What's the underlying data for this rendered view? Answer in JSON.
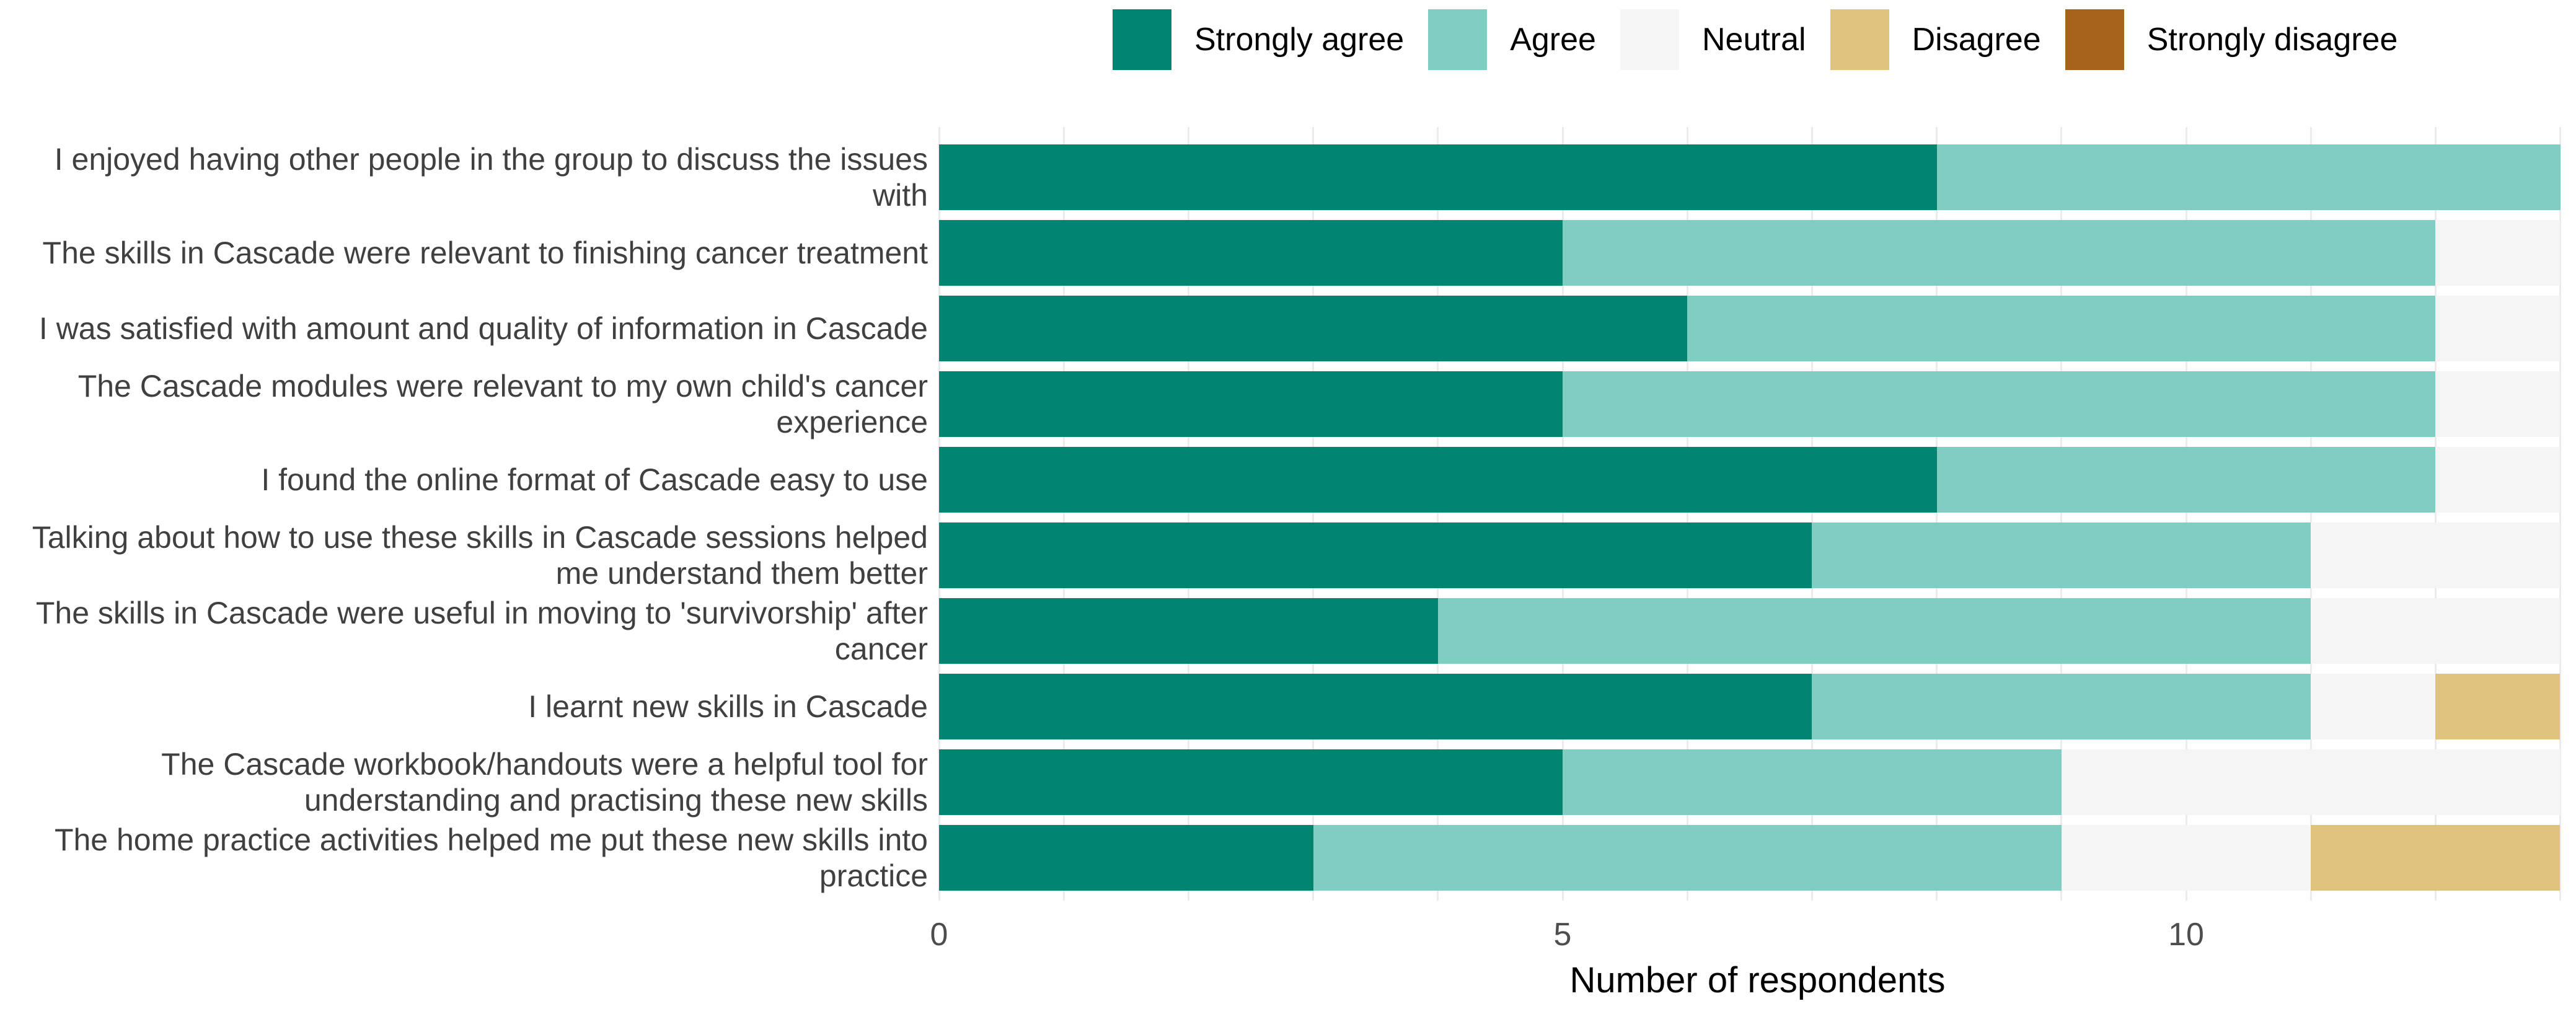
{
  "legend": {
    "items": [
      {
        "label": "Strongly agree",
        "color": "#018571"
      },
      {
        "label": "Agree",
        "color": "#80cdc1"
      },
      {
        "label": "Neutral",
        "color": "#f5f5f5"
      },
      {
        "label": "Disagree",
        "color": "#dfc27d"
      },
      {
        "label": "Strongly disagree",
        "color": "#a6611a"
      }
    ]
  },
  "chart_data": {
    "type": "bar",
    "stacked": true,
    "orientation": "horizontal",
    "title": "",
    "xlabel": "Number of respondents",
    "ylabel": "",
    "xlim": [
      0,
      13.1
    ],
    "gridline_step": 1,
    "gridline_max": 13,
    "legend_position": "top",
    "categories": [
      "I enjoyed having other people in the group to discuss the issues with",
      "The skills in Cascade were relevant to finishing cancer treatment",
      "I was satisfied with amount and quality of information in Cascade",
      "The Cascade modules were relevant to my own child's cancer experience",
      "I found the online format of Cascade easy to use",
      "Talking about how to use these skills in Cascade sessions helped me understand them better",
      "The skills in Cascade were useful in moving to 'survivorship' after cancer",
      "I learnt new skills in Cascade",
      "The Cascade workbook/handouts were a helpful tool for understanding and practising these new skills",
      "The home practice activities helped me put these new skills into practice"
    ],
    "series": [
      {
        "name": "Strongly agree",
        "color": "#018571",
        "values": [
          8,
          5,
          6,
          5,
          8,
          7,
          4,
          7,
          5,
          3
        ]
      },
      {
        "name": "Agree",
        "color": "#80cdc1",
        "values": [
          5,
          7,
          6,
          7,
          4,
          4,
          7,
          4,
          4,
          6
        ]
      },
      {
        "name": "Neutral",
        "color": "#f5f5f5",
        "values": [
          0,
          1,
          1,
          1,
          1,
          2,
          2,
          1,
          4,
          2
        ]
      },
      {
        "name": "Disagree",
        "color": "#dfc27d",
        "values": [
          0,
          0,
          0,
          0,
          0,
          0,
          0,
          1,
          0,
          2
        ]
      },
      {
        "name": "Strongly disagree",
        "color": "#a6611a",
        "values": [
          0,
          0,
          0,
          0,
          0,
          0,
          0,
          0,
          0,
          0
        ]
      }
    ],
    "x_ticks": [
      0,
      5,
      10
    ],
    "total_per_row": 13
  },
  "colors": {
    "strongly_agree": "#018571",
    "agree": "#80cdc1",
    "neutral": "#f5f5f5",
    "disagree": "#dfc27d",
    "strongly_disagree": "#a6611a",
    "gridline": "#ebebeb",
    "axis_text": "#4d4d4d",
    "y_label_text": "#404040",
    "background": "#ffffff"
  }
}
